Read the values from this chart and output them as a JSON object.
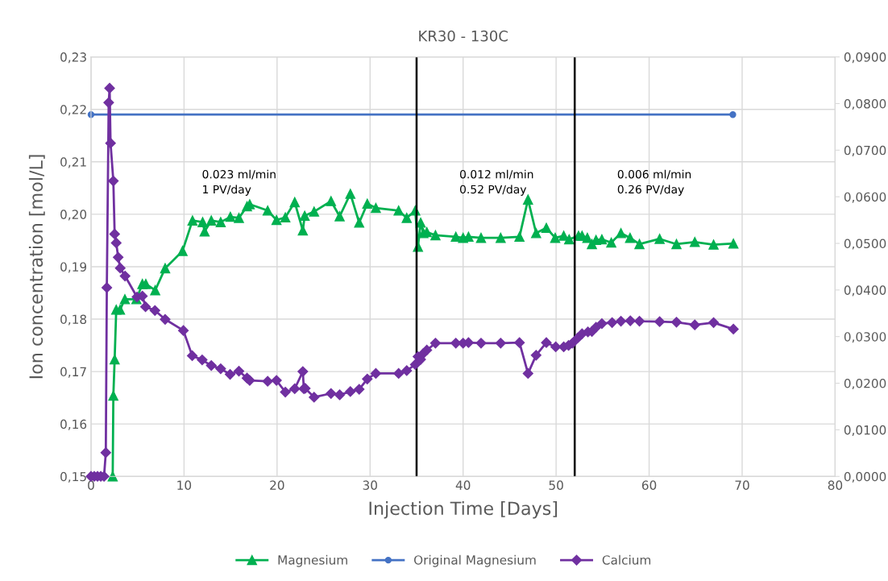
{
  "chart_data": {
    "type": "line",
    "title": "KR30 - 130C",
    "xlabel": "Injection Time [Days]",
    "ylabel": "Ion concentration [mol/L]",
    "xlim": [
      0,
      80
    ],
    "xticks": [
      0,
      10,
      20,
      30,
      40,
      50,
      60,
      70,
      80
    ],
    "ylim": [
      0.15,
      0.23
    ],
    "yticks": [
      {
        "value": 0.15,
        "label": "0,15"
      },
      {
        "value": 0.16,
        "label": "0,16"
      },
      {
        "value": 0.17,
        "label": "0,17"
      },
      {
        "value": 0.18,
        "label": "0,18"
      },
      {
        "value": 0.19,
        "label": "0,19"
      },
      {
        "value": 0.2,
        "label": "0,20"
      },
      {
        "value": 0.21,
        "label": "0,21"
      },
      {
        "value": 0.22,
        "label": "0,22"
      },
      {
        "value": 0.23,
        "label": "0,23"
      }
    ],
    "y2lim": [
      0,
      0.09
    ],
    "y2ticks": [
      {
        "value": 0,
        "label": "0,0000"
      },
      {
        "value": 0.01,
        "label": "0,0100"
      },
      {
        "value": 0.02,
        "label": "0,0200"
      },
      {
        "value": 0.03,
        "label": "0,0300"
      },
      {
        "value": 0.04,
        "label": "0,0400"
      },
      {
        "value": 0.05,
        "label": "0,0500"
      },
      {
        "value": 0.06,
        "label": "0,0600"
      },
      {
        "value": 0.07,
        "label": "0,0700"
      },
      {
        "value": 0.08,
        "label": "0,0800"
      },
      {
        "value": 0.09,
        "label": "0,0900"
      }
    ],
    "grid": true,
    "legend": "bottom",
    "line_style": "solid",
    "series": [
      {
        "name": "Magnesium",
        "color": "#00b050",
        "marker": "triangle",
        "x": [
          2.33,
          2.4,
          2.54,
          2.71,
          3.12,
          3.64,
          4.88,
          5.52,
          5.89,
          6.9,
          7.97,
          9.84,
          10.91,
          12.0,
          12.21,
          12.93,
          13.94,
          14.98,
          15.9,
          16.77,
          17.06,
          18.99,
          19.94,
          20.89,
          21.9,
          22.77,
          22.97,
          23.98,
          25.8,
          26.73,
          27.88,
          28.83,
          29.7,
          30.62,
          33.07,
          33.94,
          34.86,
          35.15,
          35.44,
          35.73,
          36.1,
          37.03,
          39.22,
          40.0,
          40.58,
          41.93,
          44.04,
          46.06,
          46.98,
          47.85,
          48.95,
          49.9,
          50.82,
          51.4,
          52.41,
          52.79,
          53.36,
          53.85,
          54.29,
          54.92,
          55.93,
          56.97,
          57.95,
          58.96,
          61.13,
          62.94,
          64.91,
          66.93,
          69.06
        ],
        "values": [
          0.15,
          0.1654,
          0.1723,
          0.1818,
          0.1818,
          0.1838,
          0.1838,
          0.1867,
          0.1867,
          0.1855,
          0.1897,
          0.193,
          0.1988,
          0.1985,
          0.1967,
          0.1988,
          0.1985,
          0.1995,
          0.1993,
          0.2015,
          0.2019,
          0.2007,
          0.1989,
          0.1994,
          0.2023,
          0.1969,
          0.1997,
          0.2005,
          0.2025,
          0.1996,
          0.2039,
          0.1984,
          0.202,
          0.2012,
          0.2007,
          0.1993,
          0.2007,
          0.1938,
          0.1984,
          0.1964,
          0.1966,
          0.196,
          0.1957,
          0.1955,
          0.1957,
          0.1955,
          0.1955,
          0.1957,
          0.2028,
          0.1964,
          0.1974,
          0.1955,
          0.1959,
          0.1952,
          0.1959,
          0.1959,
          0.1955,
          0.1943,
          0.1951,
          0.1952,
          0.1946,
          0.1964,
          0.1955,
          0.1943,
          0.1953,
          0.1943,
          0.1947,
          0.1942,
          0.1944
        ]
      },
      {
        "name": "Original Magnesium",
        "color": "#4472c4",
        "marker": "circle",
        "x": [
          0,
          69
        ],
        "values": [
          0.219,
          0.219
        ]
      },
      {
        "name": "Calcium",
        "color": "#7030a0",
        "marker": "diamond",
        "axis": "y2",
        "x": [
          0,
          0.35,
          0.7,
          1.05,
          1.4,
          1.59,
          1.7,
          1.9,
          2.0,
          2.1,
          2.4,
          2.54,
          2.71,
          2.92,
          3.14,
          3.66,
          4.94,
          5.52,
          5.86,
          6.87,
          7.97,
          9.93,
          10.88,
          11.95,
          12.93,
          13.94,
          14.95,
          15.9,
          16.77,
          17.06,
          18.99,
          19.94,
          20.89,
          21.9,
          22.77,
          22.88,
          23.03,
          23.98,
          25.8,
          26.73,
          27.88,
          28.83,
          29.7,
          30.62,
          33.07,
          33.94,
          34.86,
          35.15,
          35.44,
          35.73,
          36.1,
          37.03,
          39.22,
          40.0,
          40.58,
          41.93,
          44.04,
          46.06,
          46.98,
          47.85,
          48.95,
          49.96,
          50.82,
          51.34,
          51.75,
          52.32,
          52.79,
          53.42,
          53.85,
          54.29,
          54.92,
          56.02,
          56.97,
          57.98,
          58.96,
          61.13,
          62.94,
          64.91,
          66.93,
          69.06
        ],
        "values": [
          0,
          0,
          0,
          0,
          0,
          0.0051,
          0.0405,
          0.0802,
          0.0833,
          0.0715,
          0.0634,
          0.052,
          0.0501,
          0.047,
          0.0447,
          0.043,
          0.0385,
          0.0387,
          0.0364,
          0.0356,
          0.0337,
          0.0313,
          0.0259,
          0.025,
          0.0238,
          0.0231,
          0.0219,
          0.0226,
          0.0211,
          0.0206,
          0.0204,
          0.0206,
          0.0181,
          0.0188,
          0.0225,
          0.0188,
          0.0189,
          0.017,
          0.0178,
          0.0175,
          0.0182,
          0.0187,
          0.0209,
          0.0221,
          0.0221,
          0.0227,
          0.024,
          0.0257,
          0.0251,
          0.0264,
          0.0271,
          0.0286,
          0.0286,
          0.0286,
          0.0287,
          0.0286,
          0.0286,
          0.0287,
          0.0221,
          0.026,
          0.0287,
          0.0278,
          0.0278,
          0.0281,
          0.0286,
          0.0297,
          0.0306,
          0.031,
          0.0311,
          0.032,
          0.0328,
          0.033,
          0.0333,
          0.0334,
          0.0333,
          0.0332,
          0.0331,
          0.0325,
          0.033,
          0.0316
        ]
      }
    ],
    "ref_lines": [
      {
        "axis": "x",
        "value": 35,
        "color": "#000000"
      },
      {
        "axis": "x",
        "value": 52,
        "color": "#000000"
      }
    ],
    "annotations": [
      "0.023 ml/min\n1 PV/day",
      "0.012 ml/min\n0.52 PV/day",
      "0.006 ml/min\n0.26 PV/day"
    ]
  }
}
